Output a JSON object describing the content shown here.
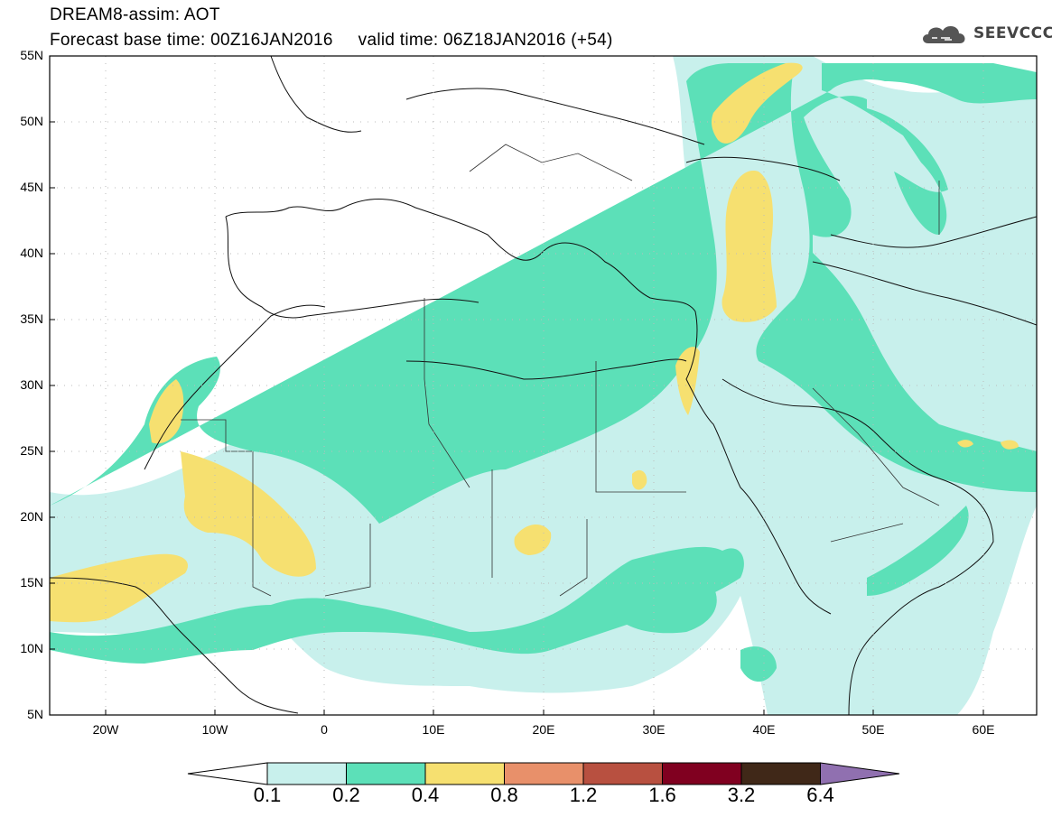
{
  "header": {
    "title_line1": "DREAM8-assim: AOT",
    "title_line2": "Forecast base time: 00Z16JAN2016     valid time: 06Z18JAN2016 (+54)",
    "logo_text": "SEEVCCC"
  },
  "map": {
    "lat_labels": [
      "55N",
      "50N",
      "45N",
      "40N",
      "35N",
      "30N",
      "25N",
      "20N",
      "15N",
      "10N",
      "5N"
    ],
    "lon_labels": [
      "20W",
      "10W",
      "0",
      "10E",
      "20E",
      "30E",
      "40E",
      "50E",
      "60E"
    ],
    "extent": {
      "lon_min": -25,
      "lon_max": 65,
      "lat_min": 5,
      "lat_max": 55
    }
  },
  "colorbar": {
    "labels": [
      "0.1",
      "0.2",
      "0.4",
      "0.8",
      "1.2",
      "1.6",
      "3.2",
      "6.4"
    ],
    "colors": [
      "#ffffff",
      "#c8f0ec",
      "#5ce0b8",
      "#f6e070",
      "#e8906a",
      "#b85040",
      "#800020",
      "#402818",
      "#9070b0"
    ]
  }
}
